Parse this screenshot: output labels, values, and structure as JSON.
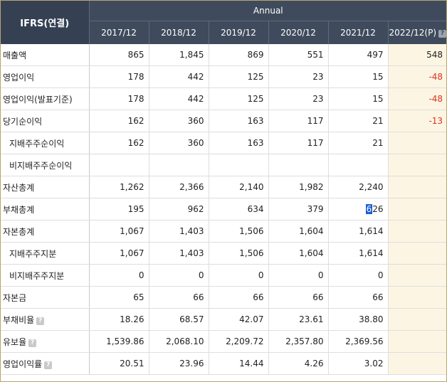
{
  "header": {
    "ifrs_label": "IFRS(연결)",
    "period_group": "Annual",
    "years": [
      "2017/12",
      "2018/12",
      "2019/12",
      "2020/12",
      "2021/12",
      "2022/12(P)"
    ]
  },
  "rows": [
    {
      "label": "매출액",
      "sub": false,
      "info": false,
      "values": [
        "865",
        "1,845",
        "869",
        "551",
        "497",
        "548"
      ]
    },
    {
      "label": "영업이익",
      "sub": false,
      "info": false,
      "values": [
        "178",
        "442",
        "125",
        "23",
        "15",
        "-48"
      ]
    },
    {
      "label": "영업이익(발표기준)",
      "sub": false,
      "info": false,
      "values": [
        "178",
        "442",
        "125",
        "23",
        "15",
        "-48"
      ]
    },
    {
      "label": "당기순이익",
      "sub": false,
      "info": false,
      "values": [
        "162",
        "360",
        "163",
        "117",
        "21",
        "-13"
      ]
    },
    {
      "label": "지배주주순이익",
      "sub": true,
      "info": false,
      "values": [
        "162",
        "360",
        "163",
        "117",
        "21",
        ""
      ]
    },
    {
      "label": "비지배주주순이익",
      "sub": true,
      "info": false,
      "values": [
        "",
        "",
        "",
        "",
        "",
        ""
      ]
    },
    {
      "label": "자산총계",
      "sub": false,
      "info": false,
      "values": [
        "1,262",
        "2,366",
        "2,140",
        "1,982",
        "2,240",
        ""
      ]
    },
    {
      "label": "부채총계",
      "sub": false,
      "info": false,
      "values": [
        "195",
        "962",
        "634",
        "379",
        "626",
        ""
      ],
      "selected_cell": 4,
      "selected_prefix": "6",
      "selected_rest": "26"
    },
    {
      "label": "자본총계",
      "sub": false,
      "info": false,
      "values": [
        "1,067",
        "1,403",
        "1,506",
        "1,604",
        "1,614",
        ""
      ]
    },
    {
      "label": "지배주주지분",
      "sub": true,
      "info": false,
      "values": [
        "1,067",
        "1,403",
        "1,506",
        "1,604",
        "1,614",
        ""
      ]
    },
    {
      "label": "비지배주주지분",
      "sub": true,
      "info": false,
      "values": [
        "0",
        "0",
        "0",
        "0",
        "0",
        ""
      ]
    },
    {
      "label": "자본금",
      "sub": false,
      "info": false,
      "values": [
        "65",
        "66",
        "66",
        "66",
        "66",
        ""
      ]
    },
    {
      "label": "부채비율",
      "sub": false,
      "info": true,
      "values": [
        "18.26",
        "68.57",
        "42.07",
        "23.61",
        "38.80",
        ""
      ]
    },
    {
      "label": "유보율",
      "sub": false,
      "info": true,
      "values": [
        "1,539.86",
        "2,068.10",
        "2,209.72",
        "2,357.80",
        "2,369.56",
        ""
      ]
    },
    {
      "label": "영업이익률",
      "sub": false,
      "info": true,
      "values": [
        "20.51",
        "23.96",
        "14.44",
        "4.26",
        "3.02",
        ""
      ]
    }
  ],
  "icons": {
    "info": "help-icon",
    "info_glyph": "?"
  },
  "colors": {
    "header_bg": "#3f4b5c",
    "estimate_bg": "#fcf5e3",
    "negative": "#e0301e",
    "selection": "#1a5fd6"
  }
}
